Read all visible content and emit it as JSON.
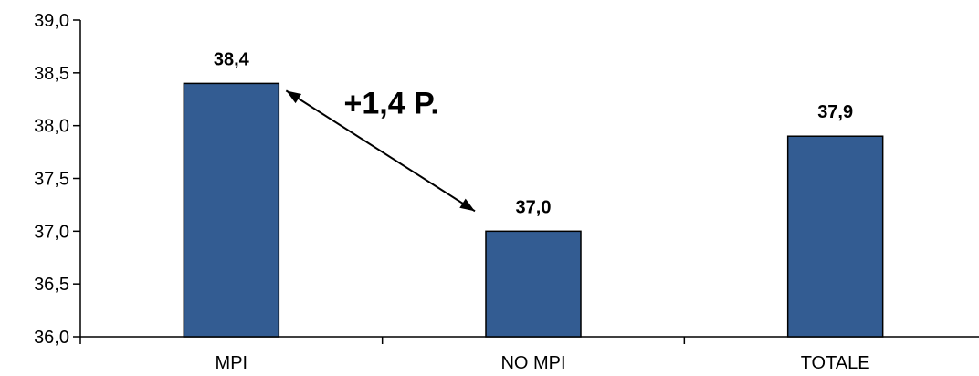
{
  "chart_data": {
    "type": "bar",
    "categories": [
      "MPI",
      "NO MPI",
      "TOTALE"
    ],
    "values": [
      38.4,
      37.0,
      37.9
    ],
    "data_labels": [
      "38,4",
      "37,0",
      "37,9"
    ],
    "ylim": [
      36.0,
      39.0
    ],
    "yticks": [
      36.0,
      36.5,
      37.0,
      37.5,
      38.0,
      38.5,
      39.0
    ],
    "ytick_labels": [
      "36,0",
      "36,5",
      "37,0",
      "37,5",
      "38,0",
      "38,5",
      "39,0"
    ],
    "grid": false,
    "legend": "none",
    "bar_color": "#335c92",
    "annotation": {
      "text": "+1,4 P.",
      "from_category": "MPI",
      "to_category": "NO MPI"
    }
  }
}
